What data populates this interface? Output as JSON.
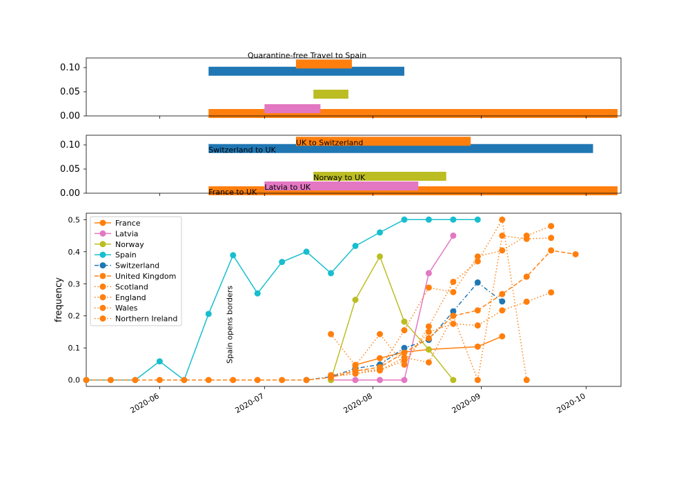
{
  "chart_data": [
    {
      "type": "bar",
      "orientation": "horizontal",
      "ylim": [
        0,
        0.12
      ],
      "yticks": [
        "0.00",
        "0.05",
        "0.10"
      ],
      "ytick_values": [
        0,
        0.05,
        0.1
      ],
      "title_annotation": "Quarantine-free Travel to Spain",
      "bars": [
        {
          "start": "2020-06-15",
          "end": "2020-10-10",
          "y": 0.005,
          "color": "#ff7f0e"
        },
        {
          "start": "2020-07-01",
          "end": "2020-07-17",
          "y": 0.015,
          "color": "#e377c2"
        },
        {
          "start": "2020-07-15",
          "end": "2020-07-25",
          "y": 0.045,
          "color": "#bcbd22"
        },
        {
          "start": "2020-06-15",
          "end": "2020-08-10",
          "y": 0.0925,
          "color": "#1f77b4"
        },
        {
          "start": "2020-07-10",
          "end": "2020-07-26",
          "y": 0.1075,
          "color": "#ff7f0e"
        }
      ]
    },
    {
      "type": "bar",
      "orientation": "horizontal",
      "ylim": [
        0,
        0.12
      ],
      "yticks": [
        "0.00",
        "0.05",
        "0.10"
      ],
      "ytick_values": [
        0,
        0.05,
        0.1
      ],
      "bars": [
        {
          "start": "2020-06-15",
          "end": "2020-10-10",
          "y": 0.005,
          "color": "#ff7f0e",
          "label": "France to UK"
        },
        {
          "start": "2020-07-01",
          "end": "2020-08-14",
          "y": 0.015,
          "color": "#e377c2",
          "label": "Latvia to UK"
        },
        {
          "start": "2020-07-15",
          "end": "2020-08-22",
          "y": 0.035,
          "color": "#bcbd22",
          "label": "Norway to UK"
        },
        {
          "start": "2020-06-15",
          "end": "2020-10-03",
          "y": 0.0925,
          "color": "#1f77b4",
          "label": "Switzerland to UK"
        },
        {
          "start": "2020-07-10",
          "end": "2020-08-29",
          "y": 0.1075,
          "color": "#ff7f0e",
          "label": "UK to Switzerland"
        }
      ]
    },
    {
      "type": "line",
      "ylabel": "frequency",
      "ylim": [
        -0.02,
        0.52
      ],
      "yticks": [
        "0.0",
        "0.1",
        "0.2",
        "0.3",
        "0.4",
        "0.5"
      ],
      "ytick_values": [
        0,
        0.1,
        0.2,
        0.3,
        0.4,
        0.5
      ],
      "xlim": [
        "2020-05-11",
        "2020-10-11"
      ],
      "xticks": [
        "2020-06",
        "2020-07",
        "2020-08",
        "2020-09",
        "2020-10"
      ],
      "xtick_dates": [
        "2020-06-01",
        "2020-07-01",
        "2020-08-01",
        "2020-09-01",
        "2020-10-01"
      ],
      "annotation": "Spain opens borders",
      "legend_position": "upper left",
      "series": [
        {
          "name": "France",
          "color": "#ff7f0e",
          "style": "solid",
          "x": [
            "2020-07-27",
            "2020-08-03",
            "2020-08-10",
            "2020-08-17",
            "2020-08-31",
            "2020-09-07"
          ],
          "y": [
            0.047,
            0.068,
            0.087,
            0.095,
            0.104,
            0.136
          ]
        },
        {
          "name": "Latvia",
          "color": "#e377c2",
          "style": "solid",
          "x": [
            "2020-07-20",
            "2020-07-27",
            "2020-08-03",
            "2020-08-10",
            "2020-08-17",
            "2020-08-24"
          ],
          "y": [
            0,
            0,
            0,
            0,
            0.333,
            0.45
          ]
        },
        {
          "name": "Norway",
          "color": "#bcbd22",
          "style": "solid",
          "x": [
            "2020-07-20",
            "2020-07-27",
            "2020-08-03",
            "2020-08-10",
            "2020-08-17",
            "2020-08-24"
          ],
          "y": [
            0,
            0.25,
            0.385,
            0.182,
            0.095,
            0
          ]
        },
        {
          "name": "Spain",
          "color": "#17becf",
          "style": "solid",
          "x": [
            "2020-05-11",
            "2020-05-18",
            "2020-05-25",
            "2020-06-01",
            "2020-06-08",
            "2020-06-15",
            "2020-06-22",
            "2020-06-29",
            "2020-07-06",
            "2020-07-13",
            "2020-07-20",
            "2020-07-27",
            "2020-08-03",
            "2020-08-10",
            "2020-08-17",
            "2020-08-24",
            "2020-08-31"
          ],
          "y": [
            0,
            0,
            0,
            0.058,
            0,
            0.206,
            0.389,
            0.27,
            0.368,
            0.4,
            0.333,
            0.418,
            0.46,
            0.5,
            0.5,
            0.5,
            0.5
          ]
        },
        {
          "name": "Switzerland",
          "color": "#1f77b4",
          "style": "dashdot",
          "x": [
            "2020-07-13",
            "2020-07-20",
            "2020-07-27",
            "2020-08-03",
            "2020-08-10",
            "2020-08-17",
            "2020-08-24",
            "2020-08-31",
            "2020-09-07"
          ],
          "y": [
            0,
            0.01,
            0.036,
            0.048,
            0.1,
            0.125,
            0.214,
            0.304,
            0.245
          ]
        },
        {
          "name": "United Kingdom",
          "color": "#ff7f0e",
          "style": "dashed",
          "x": [
            "2020-05-11",
            "2020-05-18",
            "2020-05-25",
            "2020-06-01",
            "2020-06-08",
            "2020-06-15",
            "2020-06-22",
            "2020-06-29",
            "2020-07-06",
            "2020-07-13",
            "2020-07-20",
            "2020-07-27",
            "2020-08-03",
            "2020-08-10",
            "2020-08-17",
            "2020-08-24",
            "2020-08-31",
            "2020-09-07",
            "2020-09-14",
            "2020-09-21",
            "2020-09-28"
          ],
          "y": [
            0,
            0,
            0,
            0,
            0,
            0,
            0,
            0,
            0,
            0,
            0.008,
            0.028,
            0.04,
            0.085,
            0.13,
            0.2,
            0.217,
            0.268,
            0.322,
            0.404,
            0.392
          ]
        },
        {
          "name": "Scotland",
          "color": "#ff7f0e",
          "style": "dotted",
          "x": [
            "2020-07-20",
            "2020-07-27",
            "2020-08-03",
            "2020-08-10",
            "2020-08-17",
            "2020-08-24",
            "2020-08-31",
            "2020-09-07",
            "2020-09-14"
          ],
          "y": [
            0.143,
            0.045,
            0.143,
            0.048,
            0.167,
            0.306,
            0.37,
            0.5,
            0
          ]
        },
        {
          "name": "England",
          "color": "#ff7f0e",
          "style": "dotted",
          "x": [
            "2020-07-20",
            "2020-07-27",
            "2020-08-03",
            "2020-08-10",
            "2020-08-17",
            "2020-08-24",
            "2020-08-31",
            "2020-09-07",
            "2020-09-14",
            "2020-09-21"
          ],
          "y": [
            0.015,
            0.03,
            0.03,
            0.06,
            0.15,
            0.175,
            0.17,
            0.217,
            0.244,
            0.273
          ]
        },
        {
          "name": "Wales",
          "color": "#ff7f0e",
          "style": "dotted",
          "x": [
            "2020-07-20",
            "2020-07-27",
            "2020-08-03",
            "2020-08-10",
            "2020-08-17",
            "2020-08-24",
            "2020-08-31",
            "2020-09-07",
            "2020-09-14",
            "2020-09-21"
          ],
          "y": [
            0.01,
            0.02,
            0.035,
            0.155,
            0.288,
            0.274,
            0.385,
            0.404,
            0.45,
            0.48
          ]
        },
        {
          "name": "Northern Ireland",
          "color": "#ff7f0e",
          "style": "dotted",
          "x": [
            "2020-07-20",
            "2020-07-27",
            "2020-08-03",
            "2020-08-10",
            "2020-08-17",
            "2020-08-24",
            "2020-08-31",
            "2020-09-07",
            "2020-09-14",
            "2020-09-21"
          ],
          "y": [
            0.01,
            0.02,
            0.03,
            0.07,
            0.055,
            0.2,
            0,
            0.45,
            0.44,
            0.443
          ]
        }
      ]
    }
  ]
}
